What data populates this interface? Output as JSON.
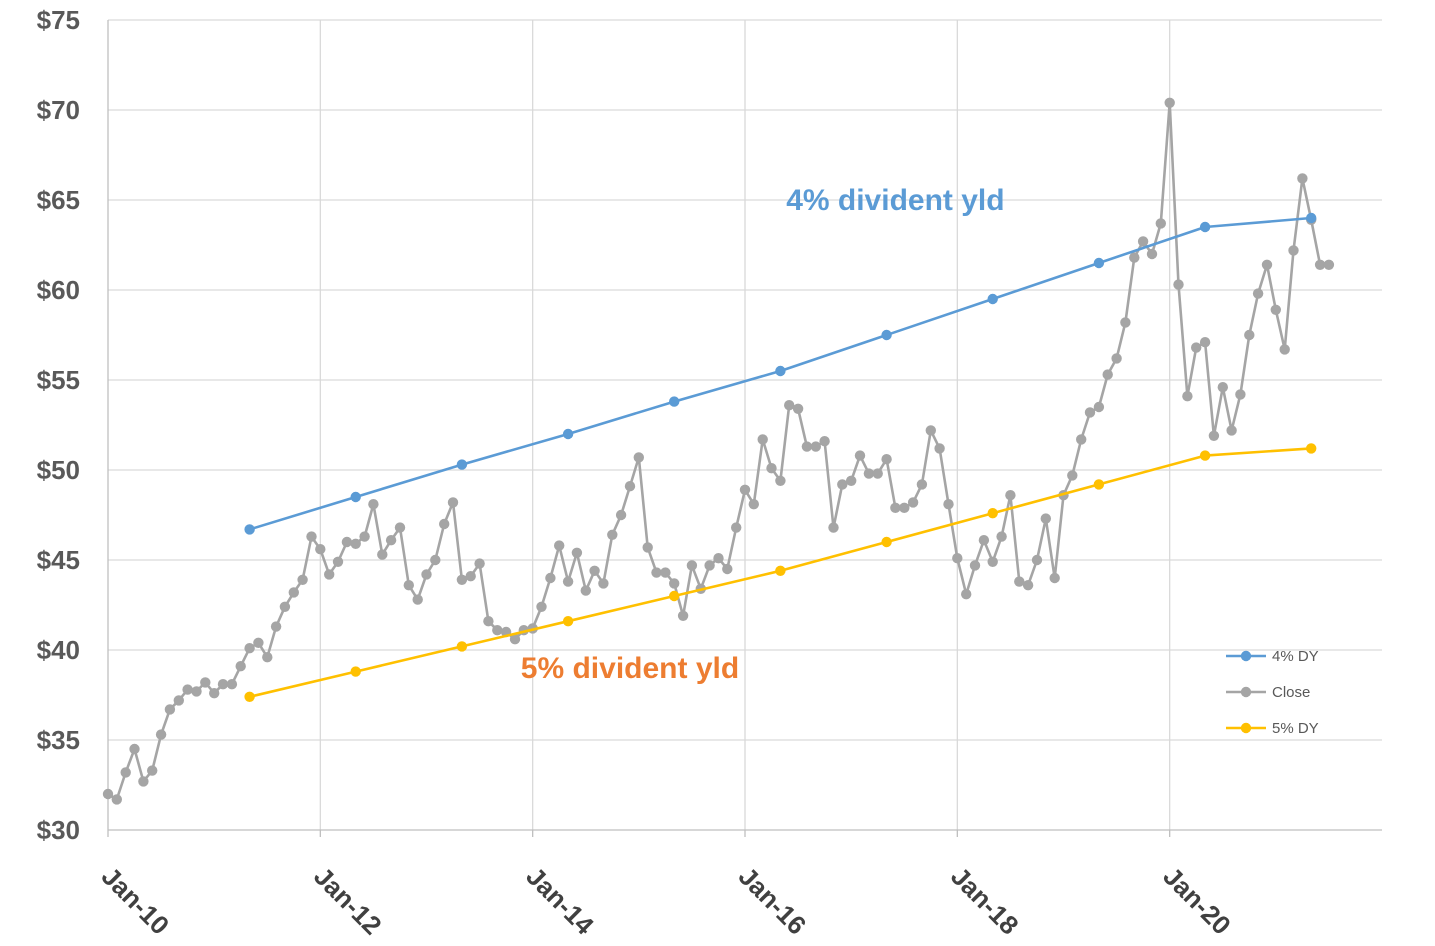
{
  "chart_data": {
    "type": "line",
    "title": "",
    "xlabel": "",
    "ylabel": "",
    "ylim": [
      30,
      75
    ],
    "yticks": [
      30,
      35,
      40,
      45,
      50,
      55,
      60,
      65,
      70,
      75
    ],
    "ytick_labels": [
      "$30",
      "$35",
      "$40",
      "$45",
      "$50",
      "$55",
      "$60",
      "$65",
      "$70",
      "$75"
    ],
    "xlim": [
      "2010-01",
      "2022-01"
    ],
    "xticks": [
      "2010-01",
      "2012-01",
      "2014-01",
      "2016-01",
      "2018-01",
      "2020-01"
    ],
    "xtick_labels": [
      "Jan-10",
      "Jan-12",
      "Jan-14",
      "Jan-16",
      "Jan-18",
      "Jan-20"
    ],
    "grid": true,
    "legend_position": "bottom-right",
    "annotations": [
      {
        "text": "4% divident yld",
        "color": "#5b9bd5",
        "x": "2017-06",
        "y": 65
      },
      {
        "text": "5% divident yld",
        "color": "#ed7d31",
        "x": "2014-12",
        "y": 39
      }
    ],
    "series": [
      {
        "name": "4% DY",
        "color": "#5b9bd5",
        "points": [
          [
            "2011-05",
            46.7
          ],
          [
            "2012-05",
            48.5
          ],
          [
            "2013-05",
            50.3
          ],
          [
            "2014-05",
            52.0
          ],
          [
            "2015-05",
            53.8
          ],
          [
            "2016-05",
            55.5
          ],
          [
            "2017-05",
            57.5
          ],
          [
            "2018-05",
            59.5
          ],
          [
            "2019-05",
            61.5
          ],
          [
            "2020-05",
            63.5
          ],
          [
            "2021-05",
            64.0
          ]
        ]
      },
      {
        "name": "Close",
        "color": "#a5a5a5",
        "points": [
          [
            "2010-01",
            32.0
          ],
          [
            "2010-02",
            31.7
          ],
          [
            "2010-03",
            33.2
          ],
          [
            "2010-04",
            34.5
          ],
          [
            "2010-05",
            32.7
          ],
          [
            "2010-06",
            33.3
          ],
          [
            "2010-07",
            35.3
          ],
          [
            "2010-08",
            36.7
          ],
          [
            "2010-09",
            37.2
          ],
          [
            "2010-10",
            37.8
          ],
          [
            "2010-11",
            37.7
          ],
          [
            "2010-12",
            38.2
          ],
          [
            "2011-01",
            37.6
          ],
          [
            "2011-02",
            38.1
          ],
          [
            "2011-03",
            38.1
          ],
          [
            "2011-04",
            39.1
          ],
          [
            "2011-05",
            40.1
          ],
          [
            "2011-06",
            40.4
          ],
          [
            "2011-07",
            39.6
          ],
          [
            "2011-08",
            41.3
          ],
          [
            "2011-09",
            42.4
          ],
          [
            "2011-10",
            43.2
          ],
          [
            "2011-11",
            43.9
          ],
          [
            "2011-12",
            46.3
          ],
          [
            "2012-01",
            45.6
          ],
          [
            "2012-02",
            44.2
          ],
          [
            "2012-03",
            44.9
          ],
          [
            "2012-04",
            46.0
          ],
          [
            "2012-05",
            45.9
          ],
          [
            "2012-06",
            46.3
          ],
          [
            "2012-07",
            48.1
          ],
          [
            "2012-08",
            45.3
          ],
          [
            "2012-09",
            46.1
          ],
          [
            "2012-10",
            46.8
          ],
          [
            "2012-11",
            43.6
          ],
          [
            "2012-12",
            42.8
          ],
          [
            "2013-01",
            44.2
          ],
          [
            "2013-02",
            45.0
          ],
          [
            "2013-03",
            47.0
          ],
          [
            "2013-04",
            48.2
          ],
          [
            "2013-05",
            43.9
          ],
          [
            "2013-06",
            44.1
          ],
          [
            "2013-07",
            44.8
          ],
          [
            "2013-08",
            41.6
          ],
          [
            "2013-09",
            41.1
          ],
          [
            "2013-10",
            41.0
          ],
          [
            "2013-11",
            40.6
          ],
          [
            "2013-12",
            41.1
          ],
          [
            "2014-01",
            41.2
          ],
          [
            "2014-02",
            42.4
          ],
          [
            "2014-03",
            44.0
          ],
          [
            "2014-04",
            45.8
          ],
          [
            "2014-05",
            43.8
          ],
          [
            "2014-06",
            45.4
          ],
          [
            "2014-07",
            43.3
          ],
          [
            "2014-08",
            44.4
          ],
          [
            "2014-09",
            43.7
          ],
          [
            "2014-10",
            46.4
          ],
          [
            "2014-11",
            47.5
          ],
          [
            "2014-12",
            49.1
          ],
          [
            "2015-01",
            50.7
          ],
          [
            "2015-02",
            45.7
          ],
          [
            "2015-03",
            44.3
          ],
          [
            "2015-04",
            44.3
          ],
          [
            "2015-05",
            43.7
          ],
          [
            "2015-06",
            41.9
          ],
          [
            "2015-07",
            44.7
          ],
          [
            "2015-08",
            43.4
          ],
          [
            "2015-09",
            44.7
          ],
          [
            "2015-10",
            45.1
          ],
          [
            "2015-11",
            44.5
          ],
          [
            "2015-12",
            46.8
          ],
          [
            "2016-01",
            48.9
          ],
          [
            "2016-02",
            48.1
          ],
          [
            "2016-03",
            51.7
          ],
          [
            "2016-04",
            50.1
          ],
          [
            "2016-05",
            49.4
          ],
          [
            "2016-06",
            53.6
          ],
          [
            "2016-07",
            53.4
          ],
          [
            "2016-08",
            51.3
          ],
          [
            "2016-09",
            51.3
          ],
          [
            "2016-10",
            51.6
          ],
          [
            "2016-11",
            46.8
          ],
          [
            "2016-12",
            49.2
          ],
          [
            "2017-01",
            49.4
          ],
          [
            "2017-02",
            50.8
          ],
          [
            "2017-03",
            49.8
          ],
          [
            "2017-04",
            49.8
          ],
          [
            "2017-05",
            50.6
          ],
          [
            "2017-06",
            47.9
          ],
          [
            "2017-07",
            47.9
          ],
          [
            "2017-08",
            48.2
          ],
          [
            "2017-09",
            49.2
          ],
          [
            "2017-10",
            52.2
          ],
          [
            "2017-11",
            51.2
          ],
          [
            "2017-12",
            48.1
          ],
          [
            "2018-01",
            45.1
          ],
          [
            "2018-02",
            43.1
          ],
          [
            "2018-03",
            44.7
          ],
          [
            "2018-04",
            46.1
          ],
          [
            "2018-05",
            44.9
          ],
          [
            "2018-06",
            46.3
          ],
          [
            "2018-07",
            48.6
          ],
          [
            "2018-08",
            43.8
          ],
          [
            "2018-09",
            43.6
          ],
          [
            "2018-10",
            45.0
          ],
          [
            "2018-11",
            47.3
          ],
          [
            "2018-12",
            44.0
          ],
          [
            "2019-01",
            48.6
          ],
          [
            "2019-02",
            49.7
          ],
          [
            "2019-03",
            51.7
          ],
          [
            "2019-04",
            53.2
          ],
          [
            "2019-05",
            53.5
          ],
          [
            "2019-06",
            55.3
          ],
          [
            "2019-07",
            56.2
          ],
          [
            "2019-08",
            58.2
          ],
          [
            "2019-09",
            61.8
          ],
          [
            "2019-10",
            62.7
          ],
          [
            "2019-11",
            62.0
          ],
          [
            "2019-12",
            63.7
          ],
          [
            "2020-01",
            70.4
          ],
          [
            "2020-02",
            60.3
          ],
          [
            "2020-03",
            54.1
          ],
          [
            "2020-04",
            56.8
          ],
          [
            "2020-05",
            57.1
          ],
          [
            "2020-06",
            51.9
          ],
          [
            "2020-07",
            54.6
          ],
          [
            "2020-08",
            52.2
          ],
          [
            "2020-09",
            54.2
          ],
          [
            "2020-10",
            57.5
          ],
          [
            "2020-11",
            59.8
          ],
          [
            "2020-12",
            61.4
          ],
          [
            "2021-01",
            58.9
          ],
          [
            "2021-02",
            56.7
          ],
          [
            "2021-03",
            62.2
          ],
          [
            "2021-04",
            66.2
          ],
          [
            "2021-05",
            63.9
          ],
          [
            "2021-06",
            61.4
          ],
          [
            "2021-07",
            61.4
          ]
        ]
      },
      {
        "name": "5% DY",
        "color": "#ffc000",
        "points": [
          [
            "2011-05",
            37.4
          ],
          [
            "2012-05",
            38.8
          ],
          [
            "2013-05",
            40.2
          ],
          [
            "2014-05",
            41.6
          ],
          [
            "2015-05",
            43.0
          ],
          [
            "2016-05",
            44.4
          ],
          [
            "2017-05",
            46.0
          ],
          [
            "2018-05",
            47.6
          ],
          [
            "2019-05",
            49.2
          ],
          [
            "2020-05",
            50.8
          ],
          [
            "2021-05",
            51.2
          ]
        ]
      }
    ]
  }
}
